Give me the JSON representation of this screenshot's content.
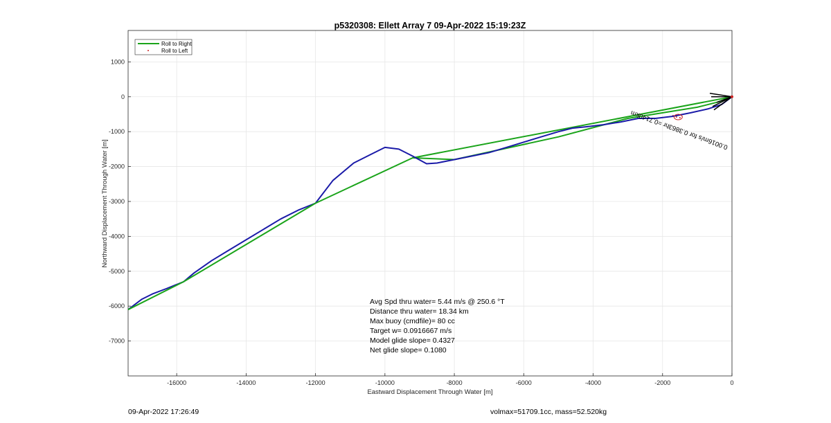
{
  "chart_data": {
    "type": "line",
    "title": "p5320308: Ellett Array 7 09-Apr-2022 15:19:23Z",
    "xlabel": "Eastward Displacement Through Water [m]",
    "ylabel": "Northward Displacement Through Water [m]",
    "xlim": [
      -17400,
      0
    ],
    "ylim": [
      -8000,
      1900
    ],
    "xticks": [
      -16000,
      -14000,
      -12000,
      -10000,
      -8000,
      -6000,
      -4000,
      -2000,
      0
    ],
    "yticks": [
      1000,
      0,
      -1000,
      -2000,
      -3000,
      -4000,
      -5000,
      -6000,
      -7000
    ],
    "grid": true,
    "legend_placement": "top-left",
    "series": [
      {
        "name": "Roll to Right",
        "color": "#1aa41a",
        "style": "line",
        "x": [
          0,
          -9200,
          -8000,
          -5000,
          -3000,
          -1000,
          -400,
          0
        ],
        "y": [
          0,
          -1750,
          -1800,
          -1150,
          -620,
          -300,
          -150,
          0
        ]
      },
      {
        "name": "Roll to Left",
        "color": "#cc2222",
        "style": "dots",
        "x": [
          -1700,
          -1600,
          -1500
        ],
        "y": [
          -540,
          -580,
          -600
        ]
      },
      {
        "name": "",
        "color": "#1a1aa8",
        "style": "line",
        "x": [
          0,
          -300,
          -700,
          -1200,
          -1700,
          -2200,
          -2700,
          -3200,
          -3700,
          -4200,
          -4600,
          -5000,
          -5500,
          -6000,
          -6500,
          -7000,
          -7500,
          -8000,
          -8500,
          -8800,
          -9200,
          -9600,
          -10000,
          -10400,
          -10900,
          -11500,
          -12000,
          -12500,
          -13000,
          -13500,
          -14000,
          -14500,
          -15000,
          -15500,
          -15800,
          -16300,
          -16700,
          -17000,
          -17400
        ],
        "y": [
          0,
          -220,
          -350,
          -460,
          -560,
          -620,
          -620,
          -720,
          -800,
          -860,
          -900,
          -1000,
          -1150,
          -1300,
          -1450,
          -1600,
          -1700,
          -1800,
          -1900,
          -1920,
          -1700,
          -1500,
          -1450,
          -1650,
          -1900,
          -2400,
          -3050,
          -3250,
          -3500,
          -3800,
          -4100,
          -4400,
          -4700,
          -5050,
          -5300,
          -5500,
          -5650,
          -5800,
          -6100
        ]
      },
      {
        "name": "",
        "color": "#1aa41a",
        "style": "line",
        "x": [
          -17400,
          -15800,
          -12000,
          -9200
        ],
        "y": [
          -6100,
          -5300,
          -3050,
          -1750
        ]
      }
    ],
    "annotations": [
      {
        "text": "0.0016m/s for 0.3863hr =0.7140km",
        "x": -1500,
        "y": -900,
        "rotation": 20
      }
    ]
  },
  "stats": {
    "avg_speed": "Avg Spd thru water=  5.44 m/s @ 250.6 °T",
    "distance": "Distance thru water= 18.34 km",
    "max_buoy": "Max buoy (cmdfile)= 80 cc",
    "target_w": "Target w= 0.0916667 m/s",
    "model_glide": "Model glide slope= 0.4327",
    "net_glide": "Net glide slope= 0.1080"
  },
  "footer": {
    "timestamp": "09-Apr-2022 17:26:49",
    "volmax": "volmax=51709.1cc, mass=52.520kg"
  }
}
